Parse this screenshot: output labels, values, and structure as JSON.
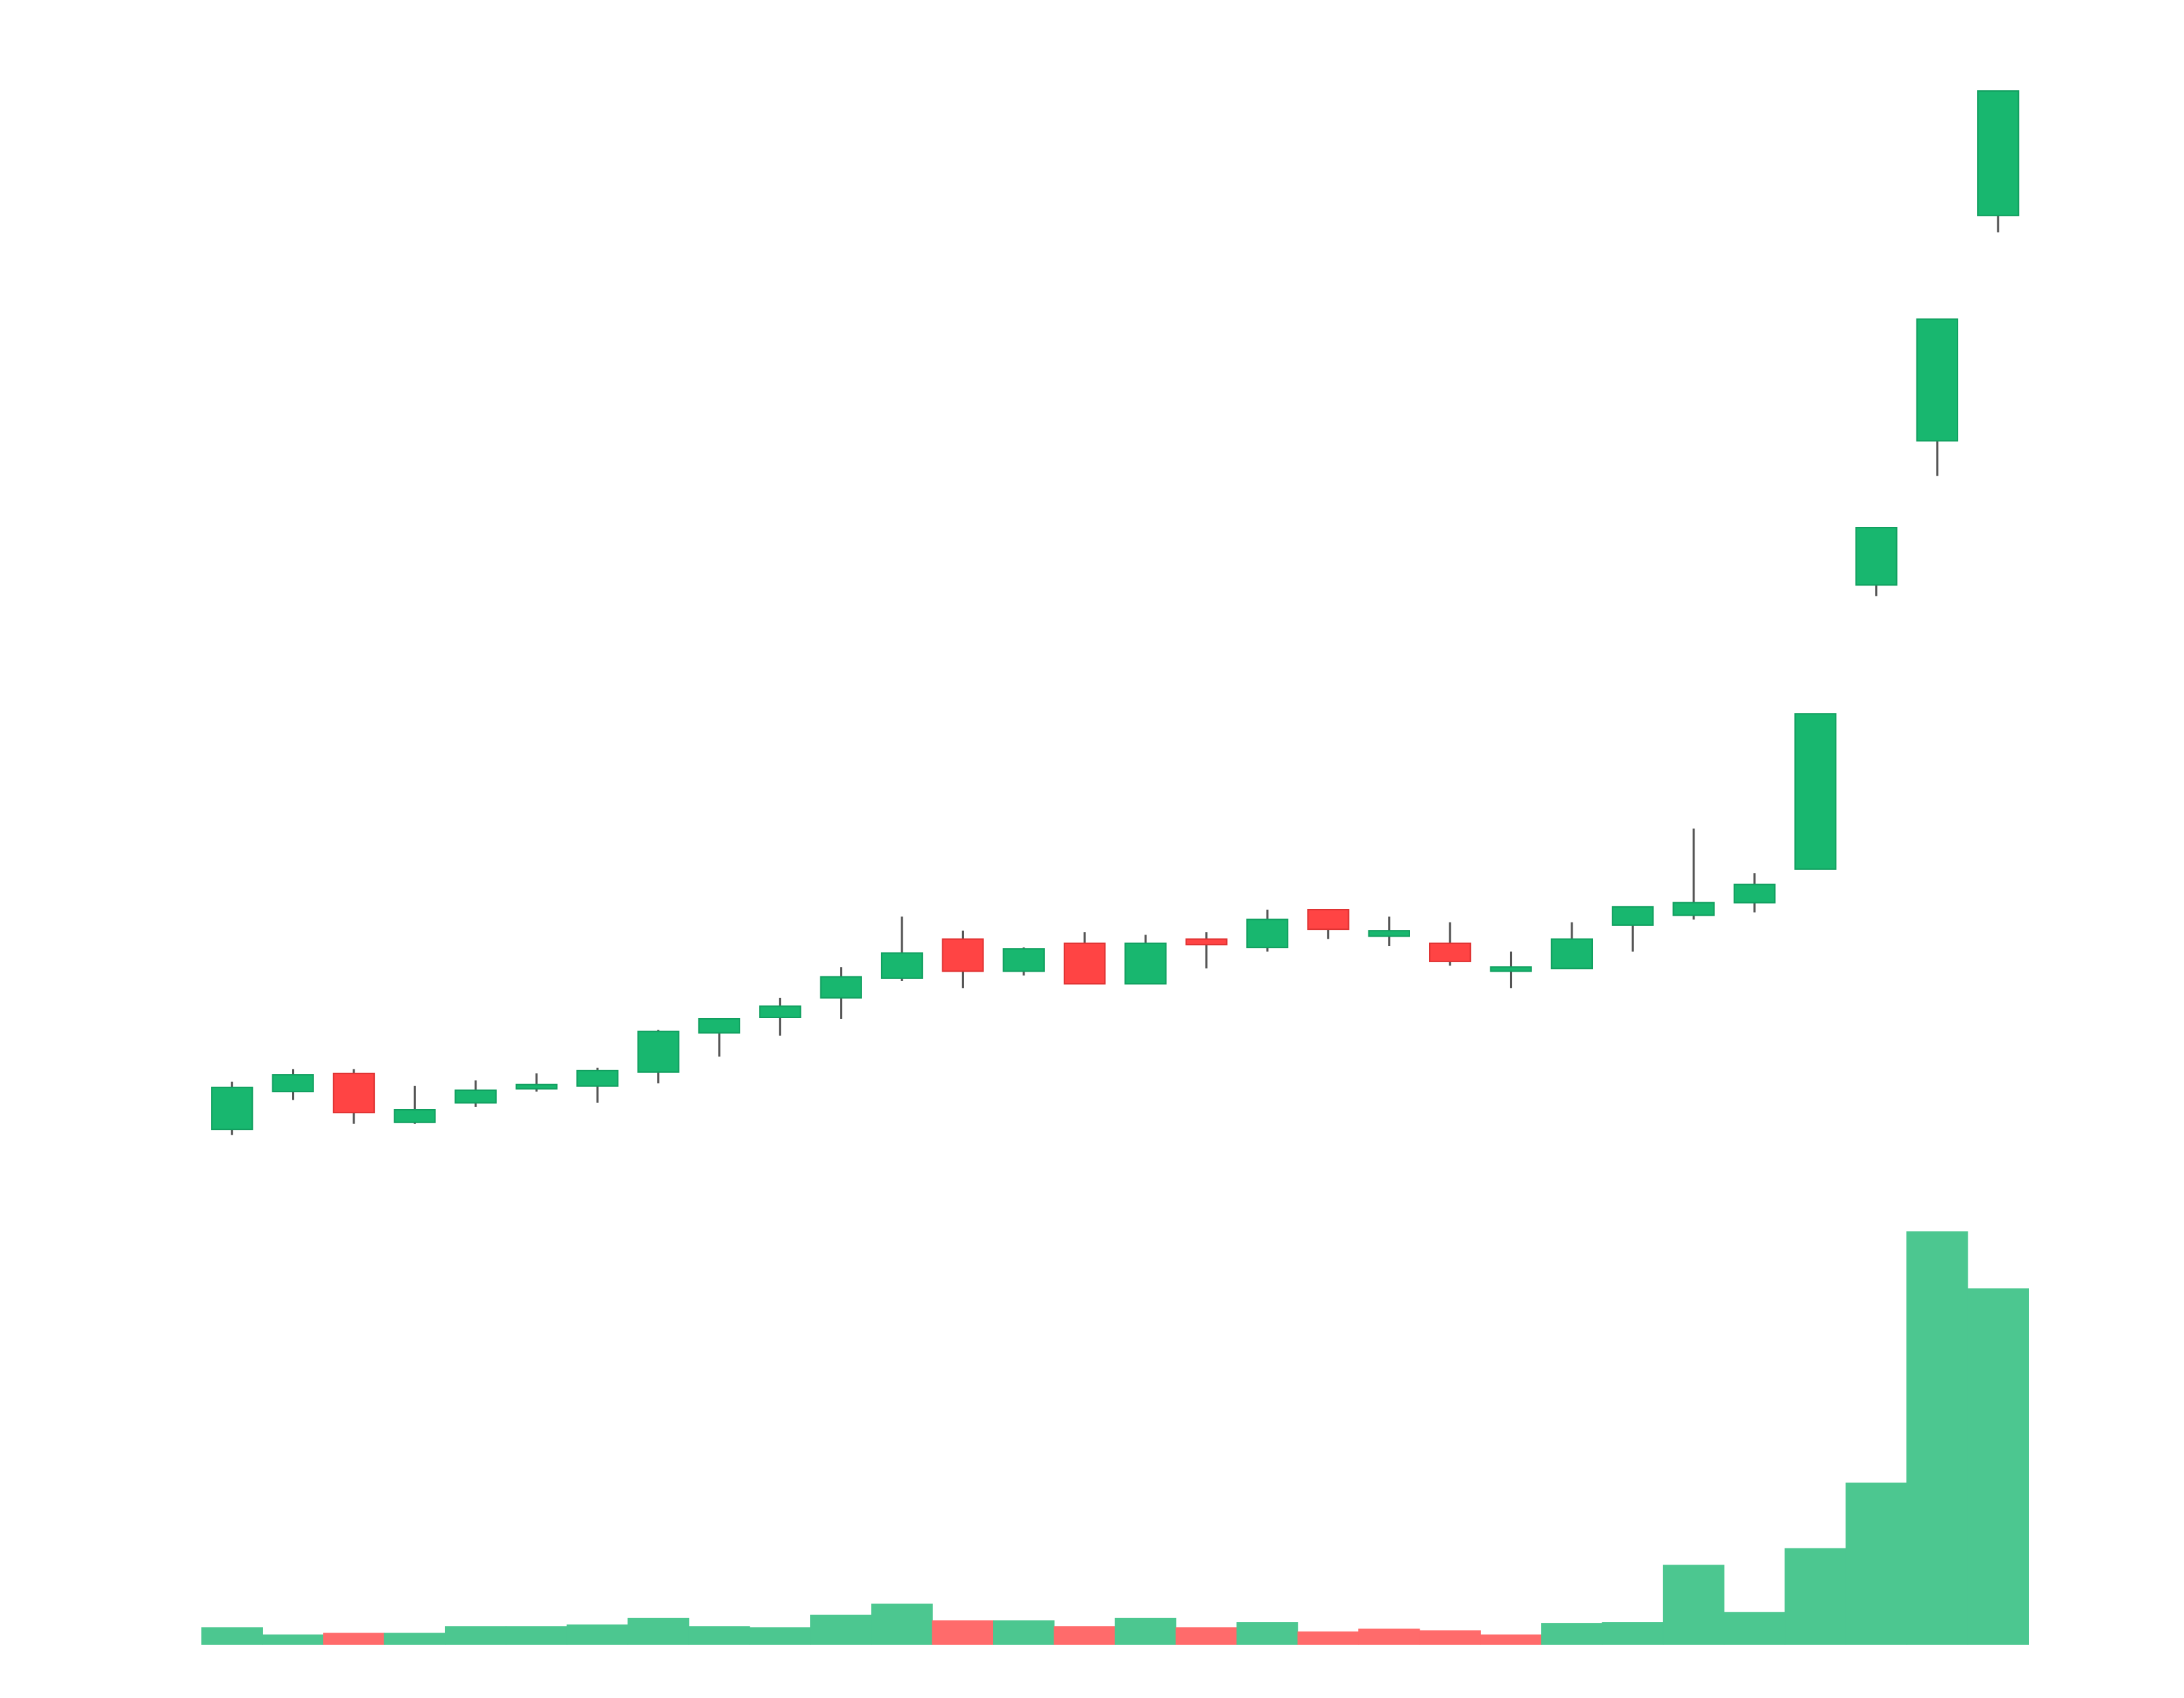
{
  "chart_data": {
    "type": "candlestick",
    "open": [
      39.3,
      42.0,
      43.3,
      39.8,
      41.2,
      42.2,
      42.4,
      43.4,
      46.2,
      47.3,
      48.7,
      50.1,
      52.9,
      50.6,
      52.6,
      49.7,
      52.9,
      52.3,
      55.0,
      53.1,
      52.6,
      50.6,
      50.8,
      53.9,
      54.6,
      55.5,
      57.9,
      78.2,
      88.5,
      104.6
    ],
    "high": [
      42.7,
      43.6,
      43.6,
      42.4,
      42.8,
      43.3,
      43.7,
      46.4,
      47.2,
      48.7,
      50.9,
      54.5,
      53.5,
      52.3,
      53.4,
      53.2,
      53.4,
      55.0,
      55.0,
      54.5,
      54.1,
      52.0,
      54.1,
      55.2,
      60.8,
      57.6,
      69.0,
      82.3,
      97.2,
      113.5
    ],
    "low": [
      38.9,
      41.4,
      39.7,
      39.7,
      40.9,
      42.0,
      41.2,
      42.6,
      44.5,
      46.0,
      47.2,
      49.9,
      49.4,
      50.3,
      49.7,
      49.7,
      50.8,
      52.0,
      52.9,
      52.4,
      51.0,
      49.4,
      50.8,
      52.0,
      54.3,
      54.8,
      57.9,
      77.4,
      86.0,
      103.4
    ],
    "close": [
      42.3,
      43.2,
      40.5,
      40.7,
      42.1,
      42.5,
      43.5,
      46.3,
      47.2,
      48.1,
      50.2,
      51.9,
      50.6,
      52.2,
      49.7,
      52.6,
      52.5,
      54.3,
      53.6,
      53.5,
      51.3,
      50.9,
      52.9,
      55.2,
      55.5,
      56.8,
      69.0,
      82.3,
      97.2,
      113.5
    ],
    "volume": [
      4,
      2.3,
      2.7,
      2.7,
      4.3,
      4.3,
      4.7,
      6.3,
      4.3,
      4,
      7,
      9.7,
      5.7,
      5.7,
      4.3,
      6.3,
      4,
      5.3,
      3,
      3.7,
      3.3,
      2.3,
      5,
      5.3,
      19,
      7.7,
      23,
      38.7,
      99,
      85.3
    ],
    "volume_colors": [
      "#4cc790",
      "#4cc790",
      "#ff6b6b",
      "#4cc790",
      "#4cc790",
      "#4cc790",
      "#4cc790",
      "#4cc790",
      "#4cc790",
      "#4cc790",
      "#4cc790",
      "#4cc790",
      "#ff6b6b",
      "#4cc790",
      "#ff6b6b",
      "#4cc790",
      "#ff6b6b",
      "#4cc790",
      "#ff6b6b",
      "#ff6b6b",
      "#ff6b6b",
      "#ff6b6b",
      "#4cc790",
      "#4cc790",
      "#4cc790",
      "#4cc790",
      "#4cc790",
      "#4cc790",
      "#4cc790",
      "#4cc790"
    ],
    "up_color": "#18b76f",
    "down_color": "#ff4444",
    "wick_color": "#555555",
    "ylim": [
      0,
      120
    ],
    "volume_ylim": [
      0,
      100
    ]
  }
}
